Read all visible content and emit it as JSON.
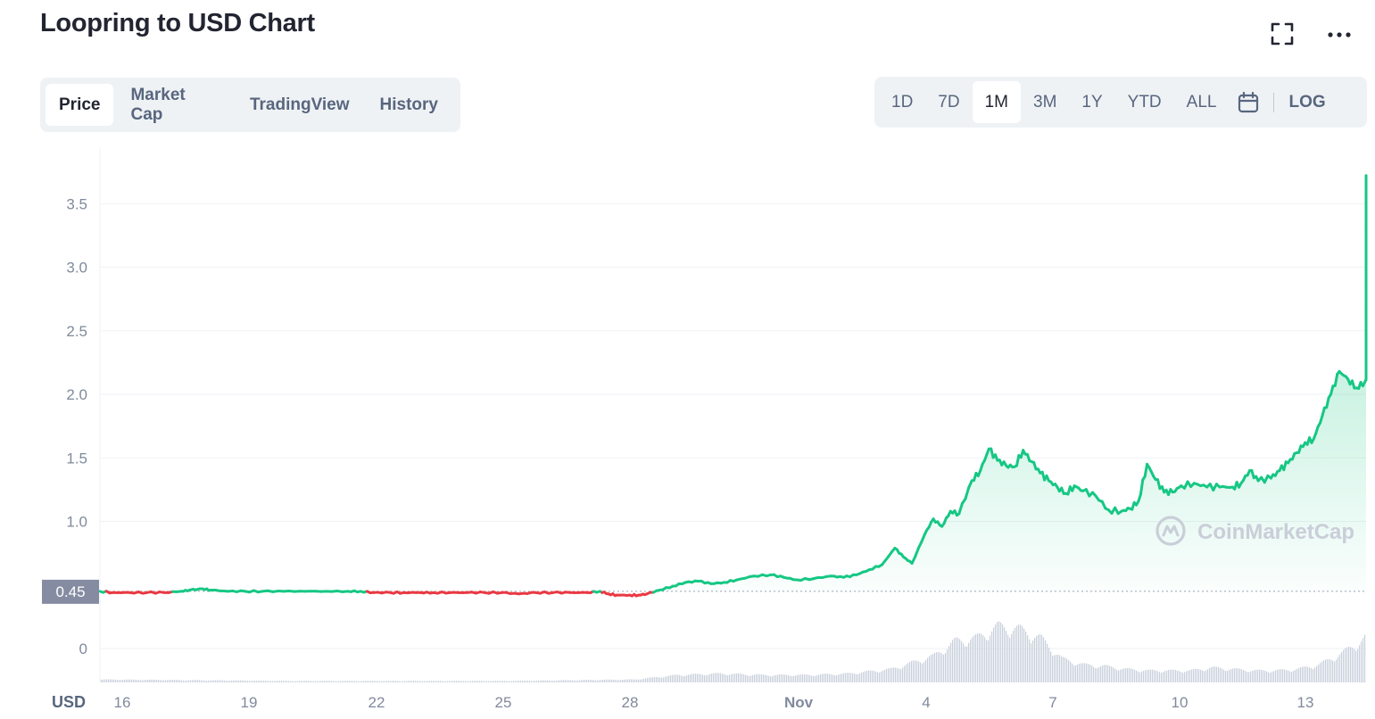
{
  "header": {
    "title": "Loopring to USD Chart",
    "fullscreen_icon": "fullscreen-icon",
    "more_icon": "more-dots-icon"
  },
  "tabs": [
    {
      "label": "Price",
      "active": true
    },
    {
      "label": "Market Cap",
      "active": false
    },
    {
      "label": "TradingView",
      "active": false
    },
    {
      "label": "History",
      "active": false
    }
  ],
  "ranges": [
    {
      "label": "1D",
      "active": false
    },
    {
      "label": "7D",
      "active": false
    },
    {
      "label": "1M",
      "active": true
    },
    {
      "label": "3M",
      "active": false
    },
    {
      "label": "1Y",
      "active": false
    },
    {
      "label": "YTD",
      "active": false
    },
    {
      "label": "ALL",
      "active": false
    }
  ],
  "calendar_icon": "calendar-icon",
  "log_label": "LOG",
  "currency_label": "USD",
  "current_price_label": "0.45",
  "watermark": "CoinMarketCap",
  "colors": {
    "up": "#16c784",
    "down": "#ea3943",
    "grid": "#eff2f5",
    "tick": "#808a9d",
    "volume": "#c9d0dc",
    "tag": "#858ca2"
  },
  "chart_data": {
    "type": "line",
    "title": "Loopring to USD Chart",
    "xlabel": "",
    "ylabel": "USD",
    "x_tick_labels": [
      "16",
      "19",
      "22",
      "25",
      "28",
      "Nov",
      "4",
      "7",
      "10",
      "13"
    ],
    "x_tick_bold": [
      false,
      false,
      false,
      false,
      false,
      true,
      false,
      false,
      false,
      false
    ],
    "y_ticks": [
      0,
      1.0,
      1.5,
      2.0,
      2.5,
      3.0,
      3.5
    ],
    "y_tick_labels": [
      "0",
      "1.0",
      "1.5",
      "2.0",
      "2.5",
      "3.0",
      "3.5"
    ],
    "baseline_price": 0.45,
    "grid": true,
    "x_range_days": [
      15.5,
      45.3
    ],
    "series": [
      {
        "kind": "price",
        "points": [
          [
            15.5,
            0.45
          ],
          [
            15.8,
            0.44
          ],
          [
            16.2,
            0.44
          ],
          [
            16.6,
            0.44
          ],
          [
            17.0,
            0.44
          ],
          [
            17.4,
            0.45
          ],
          [
            17.6,
            0.46
          ],
          [
            17.9,
            0.47
          ],
          [
            18.1,
            0.46
          ],
          [
            18.5,
            0.45
          ],
          [
            18.9,
            0.45
          ],
          [
            19.3,
            0.45
          ],
          [
            19.8,
            0.45
          ],
          [
            20.3,
            0.45
          ],
          [
            20.8,
            0.45
          ],
          [
            21.3,
            0.45
          ],
          [
            21.6,
            0.45
          ],
          [
            21.9,
            0.44
          ],
          [
            22.3,
            0.44
          ],
          [
            22.6,
            0.44
          ],
          [
            23.0,
            0.44
          ],
          [
            23.3,
            0.44
          ],
          [
            23.7,
            0.44
          ],
          [
            24.1,
            0.44
          ],
          [
            24.5,
            0.44
          ],
          [
            24.9,
            0.44
          ],
          [
            25.3,
            0.43
          ],
          [
            25.7,
            0.44
          ],
          [
            26.1,
            0.44
          ],
          [
            26.5,
            0.44
          ],
          [
            26.9,
            0.44
          ],
          [
            27.2,
            0.45
          ],
          [
            27.4,
            0.43
          ],
          [
            27.6,
            0.42
          ],
          [
            27.9,
            0.42
          ],
          [
            28.1,
            0.42
          ],
          [
            28.3,
            0.43
          ],
          [
            28.6,
            0.46
          ],
          [
            28.9,
            0.49
          ],
          [
            29.2,
            0.52
          ],
          [
            29.5,
            0.53
          ],
          [
            29.8,
            0.51
          ],
          [
            30.1,
            0.52
          ],
          [
            30.4,
            0.54
          ],
          [
            30.8,
            0.57
          ],
          [
            31.2,
            0.58
          ],
          [
            31.5,
            0.56
          ],
          [
            31.8,
            0.54
          ],
          [
            32.2,
            0.55
          ],
          [
            32.6,
            0.57
          ],
          [
            32.9,
            0.56
          ],
          [
            33.2,
            0.58
          ],
          [
            33.5,
            0.62
          ],
          [
            33.8,
            0.66
          ],
          [
            34.1,
            0.79
          ],
          [
            34.3,
            0.72
          ],
          [
            34.5,
            0.67
          ],
          [
            34.8,
            0.9
          ],
          [
            35.0,
            1.02
          ],
          [
            35.2,
            0.96
          ],
          [
            35.4,
            1.08
          ],
          [
            35.6,
            1.06
          ],
          [
            35.9,
            1.32
          ],
          [
            36.1,
            1.4
          ],
          [
            36.3,
            1.57
          ],
          [
            36.5,
            1.48
          ],
          [
            36.7,
            1.44
          ],
          [
            36.9,
            1.43
          ],
          [
            37.1,
            1.56
          ],
          [
            37.3,
            1.47
          ],
          [
            37.5,
            1.38
          ],
          [
            37.7,
            1.32
          ],
          [
            37.9,
            1.27
          ],
          [
            38.1,
            1.22
          ],
          [
            38.3,
            1.28
          ],
          [
            38.5,
            1.24
          ],
          [
            38.8,
            1.2
          ],
          [
            39.1,
            1.09
          ],
          [
            39.4,
            1.08
          ],
          [
            39.6,
            1.1
          ],
          [
            39.8,
            1.16
          ],
          [
            40.0,
            1.45
          ],
          [
            40.2,
            1.33
          ],
          [
            40.4,
            1.23
          ],
          [
            40.6,
            1.23
          ],
          [
            40.8,
            1.28
          ],
          [
            41.1,
            1.3
          ],
          [
            41.4,
            1.27
          ],
          [
            41.7,
            1.27
          ],
          [
            42.0,
            1.27
          ],
          [
            42.2,
            1.3
          ],
          [
            42.4,
            1.4
          ],
          [
            42.6,
            1.32
          ],
          [
            42.9,
            1.34
          ],
          [
            43.1,
            1.4
          ],
          [
            43.3,
            1.46
          ],
          [
            43.5,
            1.54
          ],
          [
            43.7,
            1.62
          ],
          [
            43.9,
            1.65
          ],
          [
            44.1,
            1.83
          ],
          [
            44.3,
            2.0
          ],
          [
            44.5,
            2.18
          ],
          [
            44.7,
            2.12
          ],
          [
            44.9,
            2.05
          ],
          [
            45.1,
            2.1
          ],
          [
            45.3,
            2.14
          ],
          [
            45.5,
            2.33
          ],
          [
            45.6,
            2.52
          ],
          [
            45.8,
            2.85
          ],
          [
            46.0,
            2.82
          ],
          [
            46.2,
            2.77
          ],
          [
            46.4,
            2.95
          ],
          [
            46.6,
            3.22
          ],
          [
            46.8,
            3.45
          ],
          [
            47.0,
            3.72
          ],
          [
            47.2,
            3.3
          ],
          [
            47.4,
            3.03
          ],
          [
            47.6,
            3.05
          ],
          [
            47.8,
            3.22
          ],
          [
            48.0,
            3.64
          ],
          [
            48.2,
            3.48
          ],
          [
            48.4,
            3.28
          ],
          [
            48.6,
            3.21
          ],
          [
            48.8,
            3.21
          ],
          [
            49.0,
            3.46
          ],
          [
            49.2,
            3.08
          ],
          [
            49.4,
            3.09
          ],
          [
            49.6,
            3.12
          ],
          [
            49.8,
            3.12
          ],
          [
            50.0,
            2.91
          ],
          [
            50.2,
            2.97
          ],
          [
            50.4,
            3.08
          ],
          [
            50.6,
            3.02
          ],
          [
            50.8,
            2.96
          ],
          [
            51.0,
            2.82
          ],
          [
            51.2,
            2.78
          ],
          [
            51.4,
            2.81
          ],
          [
            51.6,
            2.76
          ],
          [
            51.8,
            2.73
          ],
          [
            52.0,
            2.76
          ],
          [
            52.2,
            2.7
          ],
          [
            52.4,
            2.78
          ],
          [
            52.6,
            2.92
          ],
          [
            52.8,
            3.21
          ],
          [
            52.9,
            3.14
          ]
        ]
      },
      {
        "kind": "volume",
        "points": [
          [
            15.5,
            0.02
          ],
          [
            20.0,
            0.01
          ],
          [
            25.0,
            0.01
          ],
          [
            28.0,
            0.02
          ],
          [
            29.0,
            0.05
          ],
          [
            30.0,
            0.06
          ],
          [
            31.0,
            0.05
          ],
          [
            32.0,
            0.05
          ],
          [
            33.0,
            0.06
          ],
          [
            34.0,
            0.09
          ],
          [
            35.0,
            0.18
          ],
          [
            35.5,
            0.28
          ],
          [
            36.0,
            0.3
          ],
          [
            36.5,
            0.38
          ],
          [
            37.0,
            0.36
          ],
          [
            37.5,
            0.3
          ],
          [
            38.0,
            0.16
          ],
          [
            38.5,
            0.12
          ],
          [
            39.0,
            0.11
          ],
          [
            39.5,
            0.09
          ],
          [
            40.0,
            0.08
          ],
          [
            40.5,
            0.08
          ],
          [
            41.0,
            0.08
          ],
          [
            41.5,
            0.1
          ],
          [
            42.0,
            0.09
          ],
          [
            42.5,
            0.08
          ],
          [
            43.0,
            0.08
          ],
          [
            43.5,
            0.09
          ],
          [
            44.0,
            0.12
          ],
          [
            44.5,
            0.19
          ],
          [
            45.0,
            0.28
          ],
          [
            45.5,
            0.4
          ],
          [
            46.0,
            0.46
          ],
          [
            46.5,
            0.52
          ],
          [
            47.0,
            0.68
          ],
          [
            47.5,
            0.6
          ],
          [
            48.0,
            0.62
          ],
          [
            48.5,
            0.52
          ],
          [
            49.0,
            0.42
          ],
          [
            49.5,
            0.3
          ],
          [
            50.0,
            0.25
          ],
          [
            50.5,
            0.2
          ],
          [
            51.0,
            0.15
          ],
          [
            51.5,
            0.11
          ],
          [
            52.0,
            0.09
          ],
          [
            52.5,
            0.09
          ],
          [
            52.9,
            0.13
          ]
        ]
      }
    ]
  }
}
